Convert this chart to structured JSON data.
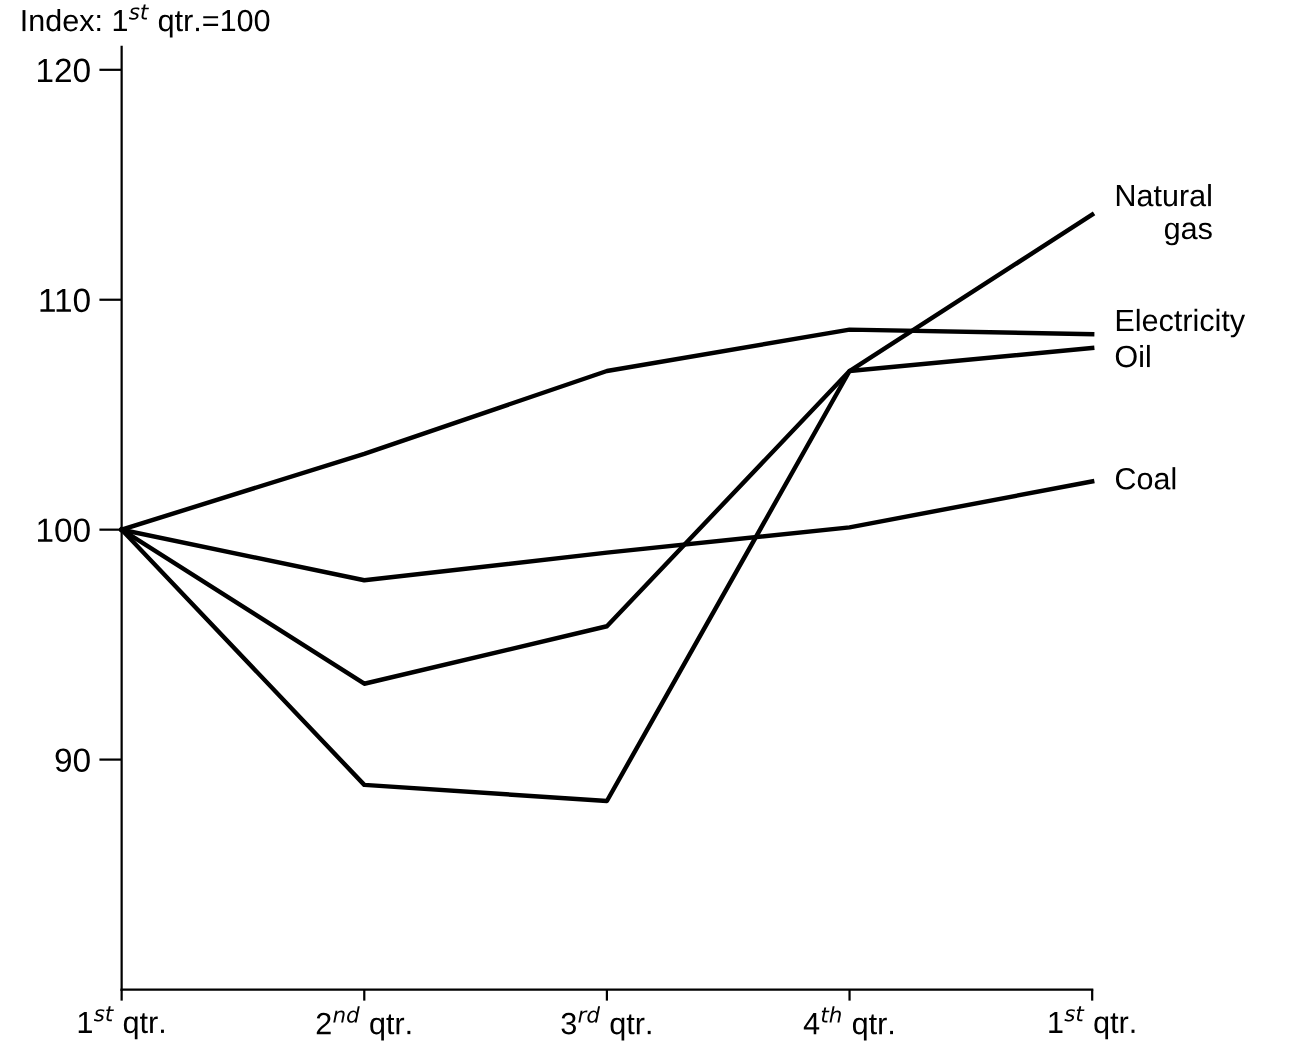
{
  "chart_data": {
    "type": "line",
    "ylabel": "Index: 1$^{st}$ qtr.=100",
    "categories": [
      "1$^{st}$ qtr.",
      "2$^{nd}$ qtr.",
      "3$^{rd}$ qtr.",
      "4$^{th}$ qtr.",
      "1$^{st}$ qtr."
    ],
    "series": [
      {
        "name": "Natural\ngas",
        "color": "#000000",
        "values": [
          100,
          93.3,
          95.8,
          106.9,
          113.7
        ]
      },
      {
        "name": "Electricity",
        "color": "#000000",
        "values": [
          100,
          103.3,
          106.9,
          108.7,
          108.5
        ]
      },
      {
        "name": "Oil",
        "color": "#000000",
        "values": [
          100,
          88.9,
          88.2,
          106.9,
          107.9
        ]
      },
      {
        "name": "Coal",
        "color": "#000000",
        "values": [
          100,
          97.8,
          99.0,
          100.1,
          102.1
        ]
      }
    ],
    "ylim": [
      80,
      121
    ],
    "yticks": [
      90,
      100,
      110,
      120
    ],
    "grid": false,
    "legend": false,
    "marker": "none",
    "line_style": "solid"
  }
}
